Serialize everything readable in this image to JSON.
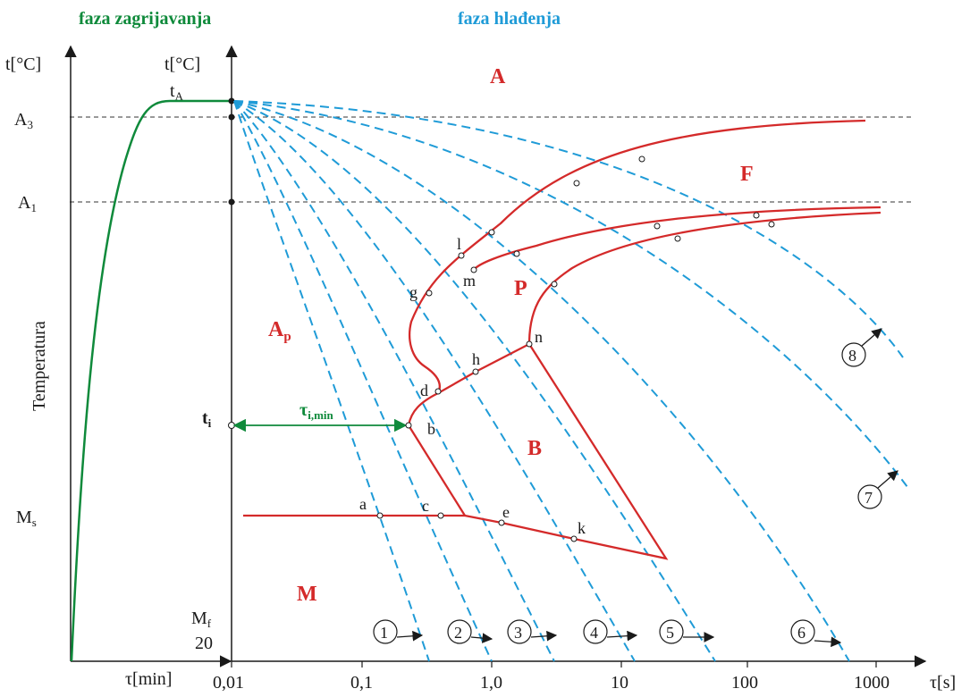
{
  "header": {
    "heating_phase": "faza zagrijavanja",
    "cooling_phase": "faza hlađenja"
  },
  "left_axis": {
    "y_label": "t[°C]",
    "x_label": "τ[min]",
    "vertical_title": "Temperatura"
  },
  "right_axis": {
    "y_label": "t[°C]",
    "x_label": "τ[s]",
    "x_ticks": [
      "0,01",
      "0,1",
      "1,0",
      "10",
      "100",
      "1000"
    ]
  },
  "temperature_labels": {
    "tA": "tA",
    "A3": "A3",
    "A1": "A1",
    "ti": "ti",
    "Ms": "Ms",
    "Mf": "Mf",
    "t20": "20"
  },
  "regions": {
    "A": "A",
    "F": "F",
    "P": "P",
    "Ap": "Ap",
    "B": "B",
    "M": "M"
  },
  "tau_min_label": "τi,min",
  "point_labels": [
    "a",
    "b",
    "c",
    "d",
    "e",
    "g",
    "h",
    "k",
    "l",
    "m",
    "n"
  ],
  "cooling_curves": [
    "1",
    "2",
    "3",
    "4",
    "5",
    "6",
    "7",
    "8"
  ],
  "colors": {
    "heating": "#0f8a3b",
    "cooling": "#1f9bd7",
    "transformation": "#d42a2a",
    "axis": "#1a1a1a"
  }
}
